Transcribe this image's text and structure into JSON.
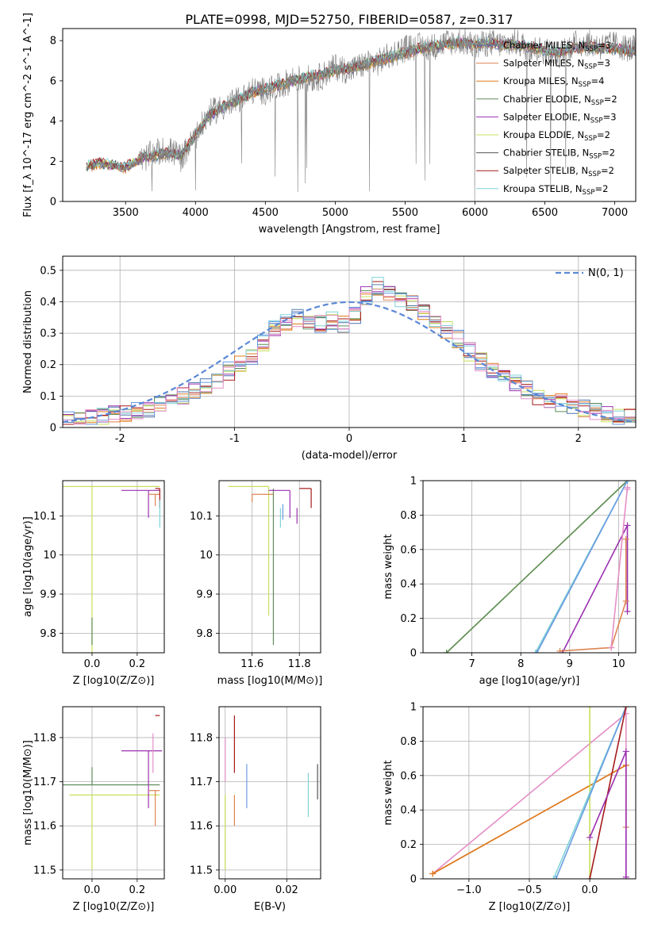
{
  "figure_title": "PLATE=0998, MJD=52750, FIBERID=0587, z=0.317",
  "colors": {
    "data": "#808080",
    "series": [
      "#4C72B0",
      "#DD8452",
      "#E07B1F",
      "#5E8C5A",
      "#9B30B0",
      "#C6E05A",
      "#555555",
      "#A51A1A",
      "#7FD3D8",
      "#6A9BE0",
      "#E48FC6"
    ]
  },
  "chart_data": [
    {
      "id": "spectrum",
      "type": "line",
      "title": "PLATE=0998, MJD=52750, FIBERID=0587, z=0.317",
      "xlabel": "wavelength [Angstrom, rest frame]",
      "ylabel": "Flux [f_λ 10^-17 erg cm^-2 s^-1 A^-1]",
      "xlim": [
        3050,
        7150
      ],
      "ylim": [
        0,
        8.6
      ],
      "xticks": [
        3500,
        4000,
        4500,
        5000,
        5500,
        6000,
        6500,
        7000
      ],
      "yticks": [
        0,
        2,
        4,
        6,
        8
      ],
      "legend_position": "upper-right",
      "data_series": {
        "name": "data",
        "x": [
          3220,
          3300,
          3400,
          3500,
          3600,
          3700,
          3800,
          3900,
          4000,
          4100,
          4200,
          4300,
          4400,
          4500,
          4600,
          4700,
          4800,
          4900,
          5000,
          5100,
          5200,
          5300,
          5400,
          5500,
          5600,
          5700,
          5800,
          5900,
          6000,
          6100,
          6200,
          6300,
          6400,
          6500,
          6600,
          6700,
          6800,
          6900,
          7000,
          7100
        ],
        "y": [
          1.6,
          1.9,
          1.8,
          1.6,
          2.0,
          2.4,
          2.6,
          2.2,
          3.2,
          4.4,
          4.7,
          5.0,
          5.5,
          5.5,
          5.7,
          6.1,
          6.1,
          6.2,
          6.7,
          6.5,
          6.8,
          6.9,
          7.3,
          7.6,
          7.7,
          7.7,
          7.9,
          8.0,
          7.7,
          7.9,
          7.8,
          7.9,
          7.6,
          7.5,
          7.3,
          7.8,
          7.9,
          7.7,
          7.8,
          7.6
        ]
      },
      "model_x": [
        3220,
        3300,
        3400,
        3500,
        3600,
        3700,
        3800,
        3900,
        4000,
        4100,
        4200,
        4300,
        4400,
        4500,
        4600,
        4700,
        4800,
        4900,
        5000,
        5100,
        5200,
        5300,
        5400,
        5500,
        5600,
        5700,
        5800,
        5900,
        6000,
        6100,
        6200,
        6300,
        6400,
        6500,
        6600,
        6700,
        6800,
        6900,
        7000,
        7100
      ],
      "model_y": [
        1.7,
        1.9,
        1.8,
        1.7,
        2.1,
        2.3,
        2.4,
        2.3,
        3.3,
        4.3,
        4.7,
        5.0,
        5.4,
        5.6,
        5.8,
        6.0,
        6.2,
        6.3,
        6.5,
        6.6,
        6.8,
        7.0,
        7.2,
        7.4,
        7.6,
        7.7,
        7.8,
        7.9,
        7.8,
        7.9,
        7.8,
        7.8,
        7.7,
        7.5,
        7.4,
        7.6,
        7.7,
        7.6,
        7.6,
        7.5
      ],
      "legend": [
        {
          "label": "Chabrier MILES, N",
          "sub": "SSP",
          "eq": "=3"
        },
        {
          "label": "Salpeter MILES, N",
          "sub": "SSP",
          "eq": "=3"
        },
        {
          "label": "Kroupa MILES, N",
          "sub": "SSP",
          "eq": "=4"
        },
        {
          "label": "Chabrier ELODIE, N",
          "sub": "SSP",
          "eq": "=2"
        },
        {
          "label": "Salpeter ELODIE, N",
          "sub": "SSP",
          "eq": "=3"
        },
        {
          "label": "Kroupa ELODIE, N",
          "sub": "SSP",
          "eq": "=2"
        },
        {
          "label": "Chabrier STELIB, N",
          "sub": "SSP",
          "eq": "=2"
        },
        {
          "label": "Salpeter STELIB, N",
          "sub": "SSP",
          "eq": "=2"
        },
        {
          "label": "Kroupa STELIB, N",
          "sub": "SSP",
          "eq": "=2"
        }
      ]
    },
    {
      "id": "residuals",
      "type": "line",
      "xlabel": "(data-model)/error",
      "ylabel": "Normed distribution",
      "xlim": [
        -2.5,
        2.5
      ],
      "ylim": [
        0,
        0.545
      ],
      "xticks": [
        -2,
        -1,
        0,
        1,
        2
      ],
      "yticks": [
        0.0,
        0.1,
        0.2,
        0.3,
        0.4,
        0.5
      ],
      "grid": true,
      "legend_position": "upper-right",
      "legend": [
        {
          "label": "N(0, 1)"
        }
      ],
      "hist_x": [
        -2.5,
        -2.4,
        -2.3,
        -2.2,
        -2.1,
        -2.0,
        -1.9,
        -1.8,
        -1.7,
        -1.6,
        -1.5,
        -1.4,
        -1.3,
        -1.2,
        -1.1,
        -1.0,
        -0.9,
        -0.8,
        -0.7,
        -0.6,
        -0.5,
        -0.4,
        -0.3,
        -0.2,
        -0.1,
        0.0,
        0.1,
        0.2,
        0.3,
        0.4,
        0.5,
        0.6,
        0.7,
        0.8,
        0.9,
        1.0,
        1.1,
        1.2,
        1.3,
        1.4,
        1.5,
        1.6,
        1.7,
        1.8,
        1.9,
        2.0,
        2.1,
        2.2,
        2.3,
        2.4
      ],
      "hist_y": [
        0.02,
        0.025,
        0.03,
        0.035,
        0.04,
        0.045,
        0.05,
        0.06,
        0.07,
        0.085,
        0.1,
        0.115,
        0.13,
        0.15,
        0.18,
        0.2,
        0.23,
        0.27,
        0.31,
        0.33,
        0.35,
        0.34,
        0.33,
        0.34,
        0.33,
        0.36,
        0.42,
        0.45,
        0.43,
        0.41,
        0.39,
        0.37,
        0.34,
        0.31,
        0.28,
        0.24,
        0.21,
        0.18,
        0.16,
        0.14,
        0.12,
        0.1,
        0.09,
        0.08,
        0.07,
        0.06,
        0.05,
        0.04,
        0.035,
        0.03
      ]
    },
    {
      "id": "age-vs-Z",
      "type": "scatter",
      "xlabel": "Z [log10(Z/Z⊙)]",
      "ylabel": "age [log10(age/yr)]",
      "xlim": [
        -0.13,
        0.32
      ],
      "ylim": [
        9.75,
        10.19
      ],
      "xticks": [
        0.0,
        0.2
      ],
      "xtick_labels": [
        "0.0",
        "0.2"
      ],
      "yticks": [
        9.8,
        9.9,
        10.0,
        10.1
      ],
      "grid": true,
      "points": [
        {
          "x": 0.0,
          "y": 10.175,
          "xerr": [
            0.13,
            0.3
          ],
          "yerr": [
            0.45,
            0.0
          ],
          "color": 5
        },
        {
          "x": 0.0,
          "y": 9.77,
          "xerr": [
            0,
            0
          ],
          "yerr": [
            0,
            0.07
          ],
          "color": 3
        },
        {
          "x": 0.25,
          "y": 10.165,
          "xerr": [
            0.12,
            0.05
          ],
          "yerr": [
            0.07,
            0.0
          ],
          "color": 4
        },
        {
          "x": 0.28,
          "y": 10.155,
          "xerr": [
            0.03,
            0.02
          ],
          "yerr": [
            0.03,
            0.0
          ],
          "color": 1
        },
        {
          "x": 0.3,
          "y": 10.17,
          "xerr": [
            0.02,
            0.0
          ],
          "yerr": [
            0.05,
            0.0
          ],
          "color": 7
        },
        {
          "x": 0.3,
          "y": 10.11,
          "xerr": [
            0,
            0
          ],
          "yerr": [
            0.04,
            0.03
          ],
          "color": 8
        }
      ]
    },
    {
      "id": "age-vs-mass",
      "type": "scatter",
      "xlabel": "mass [log10(M/M⊙)]",
      "ylabel": "",
      "xlim": [
        11.46,
        11.89
      ],
      "ylim": [
        9.75,
        10.19
      ],
      "xticks": [
        11.6,
        11.8
      ],
      "xtick_labels": [
        "11.6",
        "11.8"
      ],
      "yticks": [
        9.8,
        9.9,
        10.0,
        10.1
      ],
      "grid": true,
      "points": [
        {
          "x": 11.67,
          "y": 10.175,
          "xerr": [
            0.17,
            0.0
          ],
          "yerr": [
            0.33,
            0.0
          ],
          "color": 5
        },
        {
          "x": 11.69,
          "y": 9.77,
          "xerr": [
            0,
            0
          ],
          "yerr": [
            0.0,
            0.4
          ],
          "color": 3
        },
        {
          "x": 11.76,
          "y": 10.165,
          "xerr": [
            0.09,
            0.0
          ],
          "yerr": [
            0.07,
            0.0
          ],
          "color": 4
        },
        {
          "x": 11.6,
          "y": 10.155,
          "xerr": [
            0.0,
            0.09
          ],
          "yerr": [
            0.02,
            0.0
          ],
          "color": 1
        },
        {
          "x": 11.85,
          "y": 10.17,
          "xerr": [
            0.05,
            0.0
          ],
          "yerr": [
            0.05,
            0.0
          ],
          "color": 7
        },
        {
          "x": 11.72,
          "y": 10.12,
          "xerr": [
            0,
            0
          ],
          "yerr": [
            0.05,
            0.0
          ],
          "color": 8
        },
        {
          "x": 11.73,
          "y": 10.13,
          "xerr": [
            0,
            0
          ],
          "yerr": [
            0.04,
            0.0
          ],
          "color": 9
        },
        {
          "x": 11.79,
          "y": 10.12,
          "xerr": [
            0,
            0
          ],
          "yerr": [
            0.04,
            0.0
          ],
          "color": 4
        }
      ]
    },
    {
      "id": "mass-weight-vs-age",
      "type": "line",
      "xlabel": "age [log10(age/yr)]",
      "ylabel": "mass weight",
      "xlim": [
        6.0,
        10.35
      ],
      "ylim": [
        0,
        1.0
      ],
      "xticks": [
        7,
        8,
        9,
        10
      ],
      "yticks": [
        0.0,
        0.2,
        0.4,
        0.6,
        0.8,
        1.0
      ],
      "grid": true,
      "series": [
        {
          "color": 5,
          "x": [
            6.48,
            10.18
          ],
          "y": [
            0.0,
            1.0
          ]
        },
        {
          "color": 3,
          "x": [
            6.48,
            10.18
          ],
          "y": [
            0.0,
            1.0
          ]
        },
        {
          "color": 8,
          "x": [
            8.3,
            10.18
          ],
          "y": [
            0.0,
            1.0
          ]
        },
        {
          "color": 9,
          "x": [
            8.33,
            10.18
          ],
          "y": [
            0.0,
            1.0
          ]
        },
        {
          "color": 4,
          "x": [
            8.85,
            10.18,
            10.18
          ],
          "y": [
            0.0,
            0.74,
            0.24
          ]
        },
        {
          "color": 1,
          "x": [
            8.8,
            9.85,
            10.15,
            10.15
          ],
          "y": [
            0.01,
            0.03,
            0.3,
            0.66
          ]
        },
        {
          "color": 10,
          "x": [
            9.85,
            10.18,
            10.18
          ],
          "y": [
            0.03,
            0.96,
            0.95
          ]
        }
      ]
    },
    {
      "id": "mass-vs-Z",
      "type": "scatter",
      "xlabel": "Z [log10(Z/Z⊙)]",
      "ylabel": "mass [log10(M/M⊙)]",
      "xlim": [
        -0.13,
        0.32
      ],
      "ylim": [
        11.48,
        11.87
      ],
      "xticks": [
        0.0,
        0.2
      ],
      "xtick_labels": [
        "0.0",
        "0.2"
      ],
      "yticks": [
        11.5,
        11.6,
        11.7,
        11.8
      ],
      "grid": true,
      "points": [
        {
          "x": 0.0,
          "y": 11.693,
          "xerr": [
            0.13,
            0.3
          ],
          "yerr": [
            0,
            0.04
          ],
          "color": 3
        },
        {
          "x": 0.0,
          "y": 11.67,
          "xerr": [
            0.1,
            0.3
          ],
          "yerr": [
            0.17,
            0.0
          ],
          "color": 5
        },
        {
          "x": 0.25,
          "y": 11.77,
          "xerr": [
            0.12,
            0.06
          ],
          "yerr": [
            0.13,
            0.0
          ],
          "color": 4
        },
        {
          "x": 0.28,
          "y": 11.68,
          "xerr": [
            0.03,
            0.02
          ],
          "yerr": [
            0.08,
            0.0
          ],
          "color": 1
        },
        {
          "x": 0.3,
          "y": 11.85,
          "xerr": [
            0.02,
            0.0
          ],
          "yerr": [
            0.0,
            0.0
          ],
          "color": 7
        },
        {
          "x": 0.27,
          "y": 11.78,
          "xerr": [
            0,
            0
          ],
          "yerr": [
            0.06,
            0.03
          ],
          "color": 10
        }
      ]
    },
    {
      "id": "mass-vs-EBV",
      "type": "scatter",
      "xlabel": "E(B-V)",
      "ylabel": "",
      "xlim": [
        -0.002,
        0.031
      ],
      "ylim": [
        11.48,
        11.87
      ],
      "xticks": [
        0.0,
        0.02
      ],
      "xtick_labels": [
        "0.00",
        "0.02"
      ],
      "yticks": [
        11.5,
        11.6,
        11.7,
        11.8
      ],
      "grid": true,
      "points": [
        {
          "x": 0.0,
          "y": 11.67,
          "xerr": [
            0,
            0
          ],
          "yerr": [
            0.17,
            0.0
          ],
          "color": 5
        },
        {
          "x": 0.0,
          "y": 11.75,
          "xerr": [
            0,
            0
          ],
          "yerr": [
            0.05,
            0.05
          ],
          "color": 10
        },
        {
          "x": 0.003,
          "y": 11.8,
          "xerr": [
            0,
            0
          ],
          "yerr": [
            0.08,
            0.05
          ],
          "color": 7
        },
        {
          "x": 0.003,
          "y": 11.63,
          "xerr": [
            0,
            0
          ],
          "yerr": [
            0.03,
            0.04
          ],
          "color": 1
        },
        {
          "x": 0.007,
          "y": 11.69,
          "xerr": [
            0,
            0
          ],
          "yerr": [
            0.05,
            0.05
          ],
          "color": 9
        },
        {
          "x": 0.027,
          "y": 11.67,
          "xerr": [
            0,
            0
          ],
          "yerr": [
            0.05,
            0.05
          ],
          "color": 8
        },
        {
          "x": 0.03,
          "y": 11.7,
          "xerr": [
            0,
            0
          ],
          "yerr": [
            0.04,
            0.04
          ],
          "color": 6
        }
      ]
    },
    {
      "id": "mass-weight-vs-Z",
      "type": "line",
      "xlabel": "Z [log10(Z/Z⊙)]",
      "ylabel": "mass weight",
      "xlim": [
        -1.38,
        0.38
      ],
      "ylim": [
        0,
        1.0
      ],
      "xticks": [
        -1.0,
        -0.5,
        0.0
      ],
      "xtick_labels": [
        "−1.0",
        "−0.5",
        "0.0"
      ],
      "yticks": [
        0.0,
        0.2,
        0.4,
        0.6,
        0.8,
        1.0
      ],
      "grid": true,
      "series": [
        {
          "color": 10,
          "x": [
            -1.3,
            0.3,
            0.3
          ],
          "y": [
            0.03,
            0.96,
            0.0
          ]
        },
        {
          "color": 1,
          "x": [
            -1.3,
            0.3,
            0.3
          ],
          "y": [
            0.03,
            0.66,
            0.3
          ]
        },
        {
          "color": 2,
          "x": [
            -1.3,
            0.3
          ],
          "y": [
            0.03,
            0.66
          ]
        },
        {
          "color": 5,
          "x": [
            0.0,
            0.0
          ],
          "y": [
            0.0,
            1.0
          ]
        },
        {
          "color": 8,
          "x": [
            -0.3,
            0.3
          ],
          "y": [
            0.0,
            1.0
          ]
        },
        {
          "color": 9,
          "x": [
            -0.28,
            0.3
          ],
          "y": [
            0.0,
            1.0
          ]
        },
        {
          "color": 7,
          "x": [
            0.0,
            0.3
          ],
          "y": [
            0.0,
            1.0
          ]
        },
        {
          "color": 4,
          "x": [
            0.0,
            0.3,
            0.3
          ],
          "y": [
            0.24,
            0.74,
            0.01
          ]
        }
      ]
    }
  ]
}
